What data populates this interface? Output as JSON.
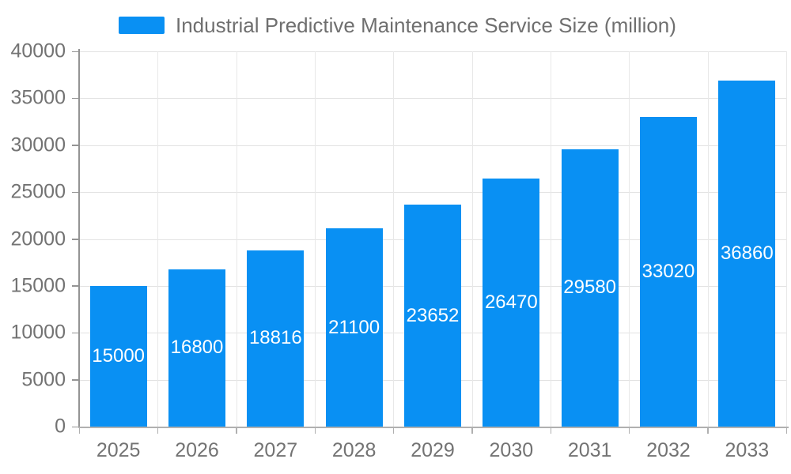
{
  "legend": {
    "items": [
      {
        "label": "Industrial Predictive Maintenance Service Size (million)",
        "color": "#0990f3"
      }
    ]
  },
  "chart_data": {
    "type": "bar",
    "title": "Industrial Predictive Maintenance Service Size (million)",
    "categories": [
      "2025",
      "2026",
      "2027",
      "2028",
      "2029",
      "2030",
      "2031",
      "2032",
      "2033"
    ],
    "values": [
      15000,
      16800,
      18816,
      21100,
      23652,
      26470,
      29580,
      33020,
      36860
    ],
    "value_labels": [
      "15000",
      "16800",
      "18816",
      "21100",
      "23652",
      "26470",
      "29580",
      "33020",
      "36860"
    ],
    "xlabel": "",
    "ylabel": "",
    "ylim": [
      0,
      40000
    ],
    "ytick_step": 5000,
    "ytick_labels": [
      "0",
      "5000",
      "10000",
      "15000",
      "20000",
      "25000",
      "30000",
      "35000",
      "40000"
    ],
    "legend_position": "top-center",
    "grid": true,
    "bar_label_position": "inside-center",
    "colors": {
      "bar": "#0990f3",
      "value_label": "#ffffff",
      "axis_tick_label": "#737373",
      "title": "#6f6f6f",
      "gridline_h": "#e2e2e2",
      "gridline_v": "#e8e8e8",
      "y_axis_line": "#949494",
      "x_axis_line": "#b0b0b0"
    }
  }
}
